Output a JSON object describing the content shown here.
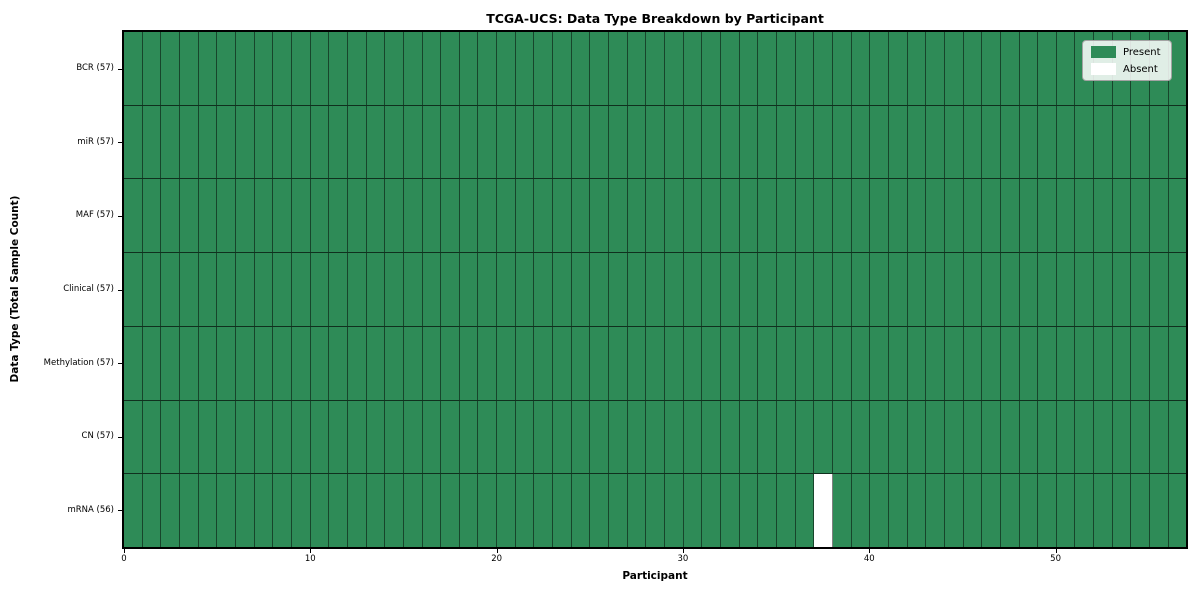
{
  "title": "TCGA-UCS: Data Type Breakdown by Participant",
  "chart_data": {
    "type": "heatmap",
    "title": "TCGA-UCS: Data Type Breakdown by Participant",
    "xlabel": "Participant",
    "ylabel": "Data Type (Total Sample Count)",
    "n_participants": 57,
    "x_ticks": [
      0,
      10,
      20,
      30,
      40,
      50
    ],
    "xlim": [
      0,
      57
    ],
    "grid": "cell-borders",
    "legend_position": "upper right",
    "rows": [
      {
        "label": "BCR (57)",
        "data_type": "BCR",
        "present_count": 57,
        "absent_participant_indices": []
      },
      {
        "label": "miR (57)",
        "data_type": "miR",
        "present_count": 57,
        "absent_participant_indices": []
      },
      {
        "label": "MAF (57)",
        "data_type": "MAF",
        "present_count": 57,
        "absent_participant_indices": []
      },
      {
        "label": "Clinical (57)",
        "data_type": "Clinical",
        "present_count": 57,
        "absent_participant_indices": []
      },
      {
        "label": "Methylation (57)",
        "data_type": "Methylation",
        "present_count": 57,
        "absent_participant_indices": []
      },
      {
        "label": "CN (57)",
        "data_type": "CN",
        "present_count": 57,
        "absent_participant_indices": []
      },
      {
        "label": "mRNA (56)",
        "data_type": "mRNA",
        "present_count": 56,
        "absent_participant_indices": [
          37
        ]
      }
    ],
    "legend": [
      {
        "label": "Present",
        "color": "#2e8b57"
      },
      {
        "label": "Absent",
        "color": "#ffffff"
      }
    ],
    "colors": {
      "present": "#2e8b57",
      "absent": "#ffffff",
      "cell_border": "rgba(0,0,0,0.5)",
      "axis": "#000000",
      "background": "#ffffff"
    }
  }
}
